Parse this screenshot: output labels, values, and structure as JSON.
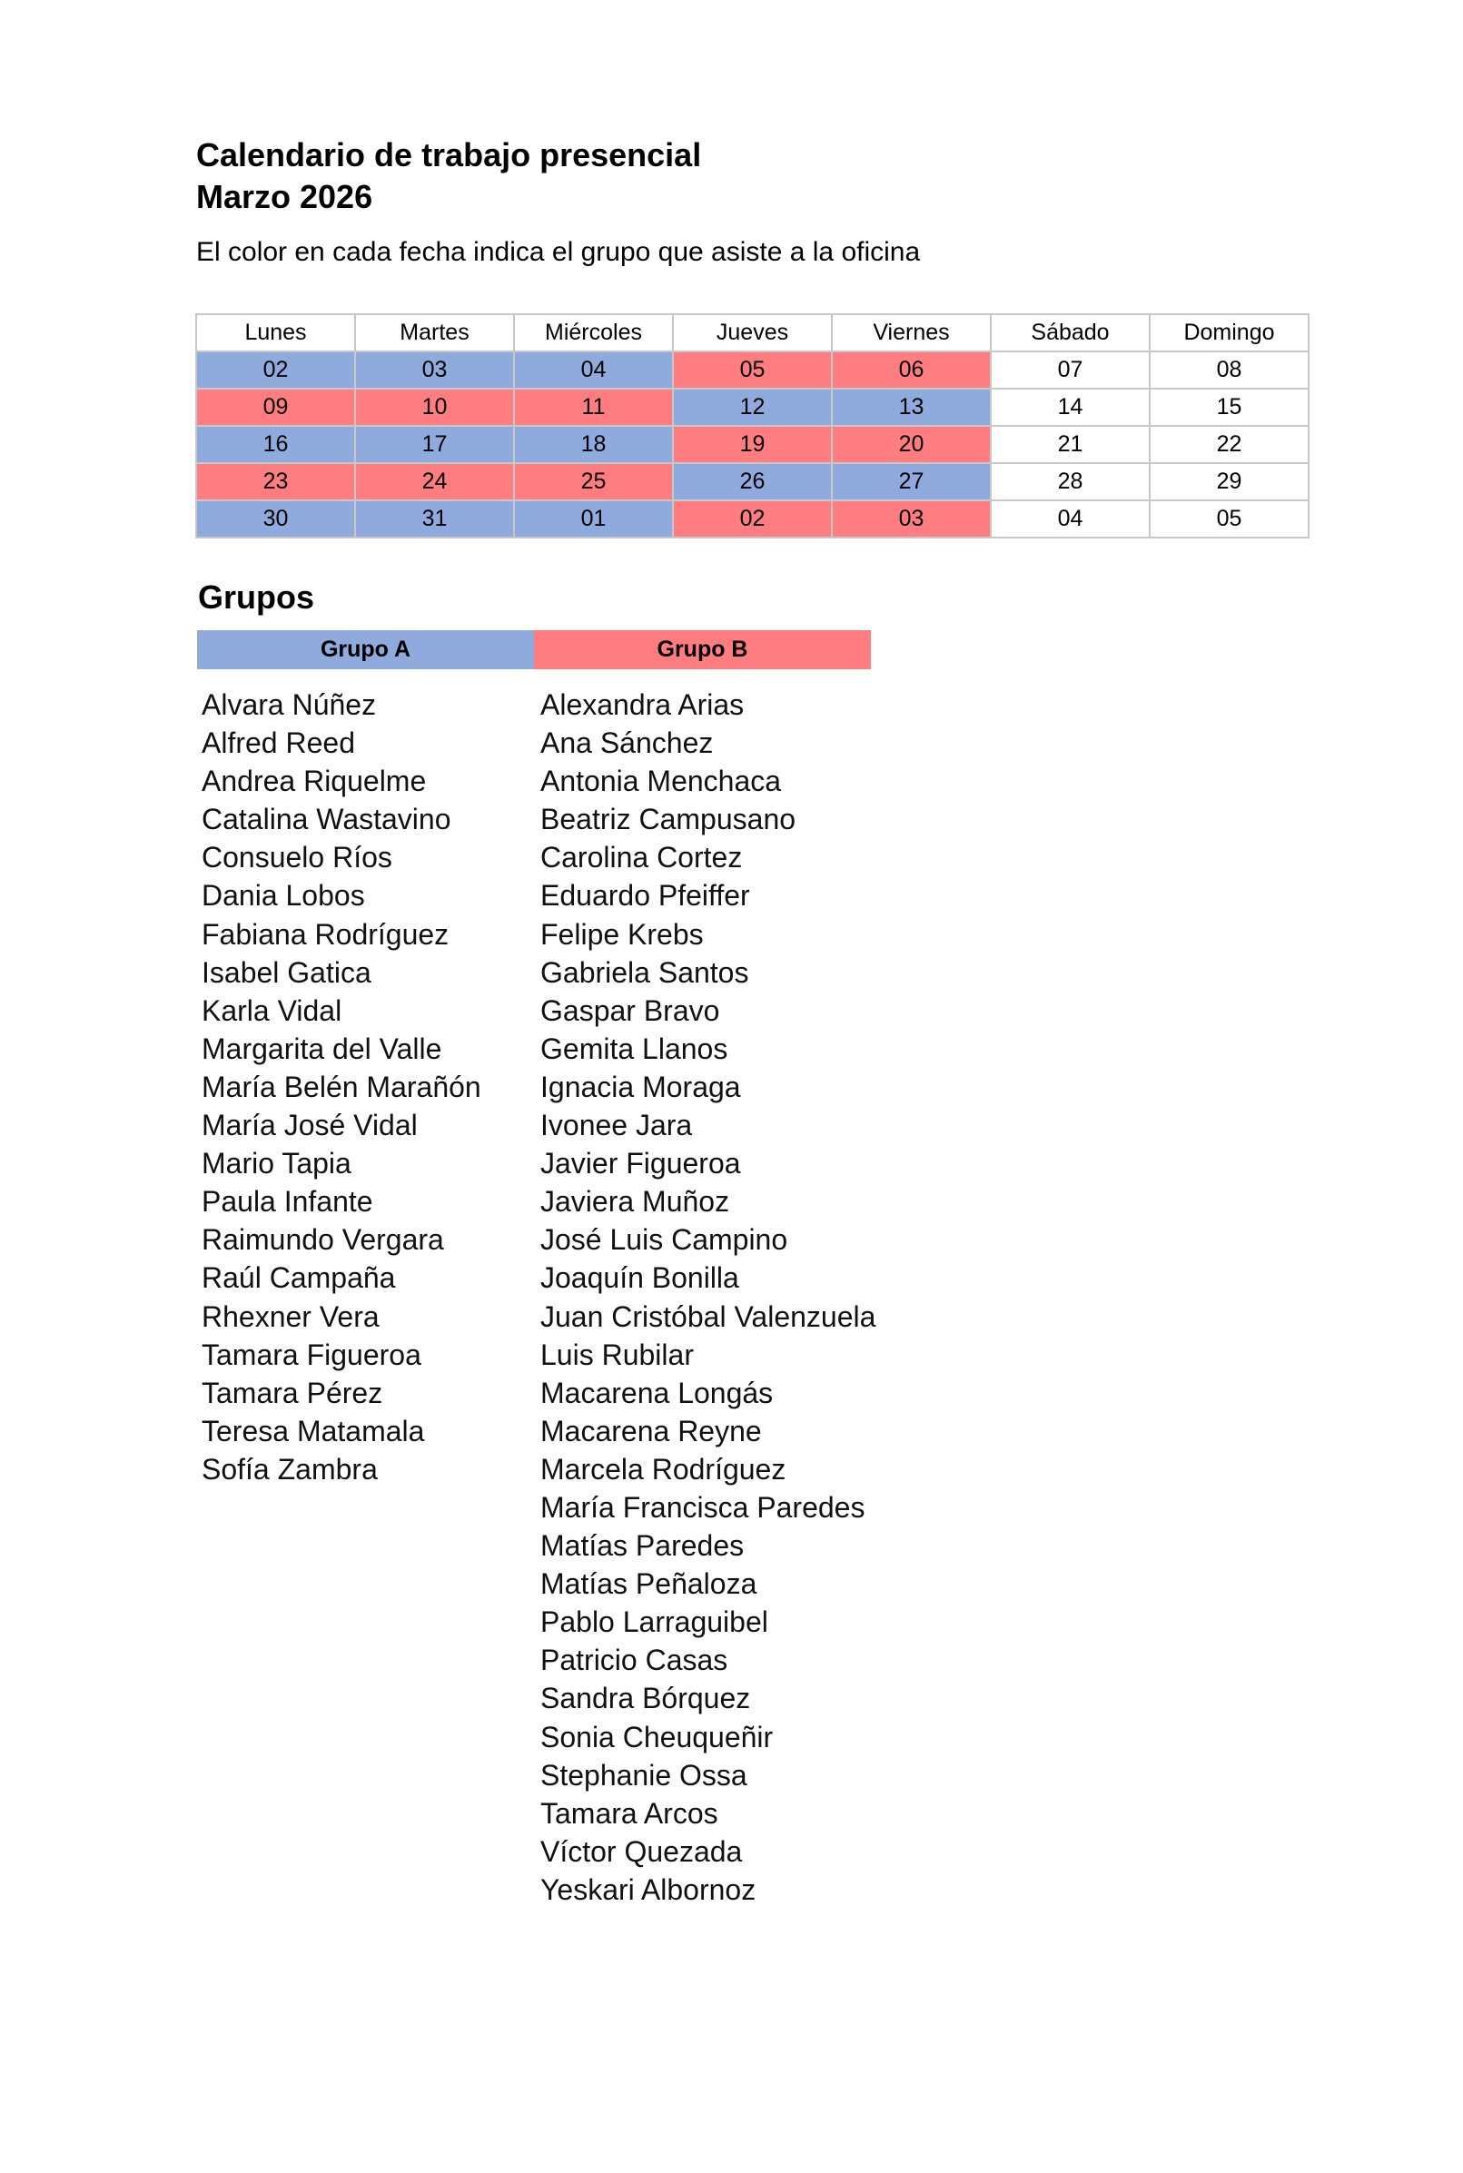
{
  "header": {
    "title": "Calendario de trabajo presencial",
    "subtitle": "Marzo 2026",
    "description": "El color en cada fecha indica el grupo que asiste  a la oficina"
  },
  "colors": {
    "grupo_a": "#8faadc",
    "grupo_b": "#ff7c80"
  },
  "calendar": {
    "days": [
      "Lunes",
      "Martes",
      "Miércoles",
      "Jueves",
      "Viernes",
      "Sábado",
      "Domingo"
    ],
    "weeks": [
      [
        {
          "d": "02",
          "g": "A"
        },
        {
          "d": "03",
          "g": "A"
        },
        {
          "d": "04",
          "g": "A"
        },
        {
          "d": "05",
          "g": "B"
        },
        {
          "d": "06",
          "g": "B"
        },
        {
          "d": "07",
          "g": ""
        },
        {
          "d": "08",
          "g": ""
        }
      ],
      [
        {
          "d": "09",
          "g": "B"
        },
        {
          "d": "10",
          "g": "B"
        },
        {
          "d": "11",
          "g": "B"
        },
        {
          "d": "12",
          "g": "A"
        },
        {
          "d": "13",
          "g": "A"
        },
        {
          "d": "14",
          "g": ""
        },
        {
          "d": "15",
          "g": ""
        }
      ],
      [
        {
          "d": "16",
          "g": "A"
        },
        {
          "d": "17",
          "g": "A"
        },
        {
          "d": "18",
          "g": "A"
        },
        {
          "d": "19",
          "g": "B"
        },
        {
          "d": "20",
          "g": "B"
        },
        {
          "d": "21",
          "g": ""
        },
        {
          "d": "22",
          "g": ""
        }
      ],
      [
        {
          "d": "23",
          "g": "B"
        },
        {
          "d": "24",
          "g": "B"
        },
        {
          "d": "25",
          "g": "B"
        },
        {
          "d": "26",
          "g": "A"
        },
        {
          "d": "27",
          "g": "A"
        },
        {
          "d": "28",
          "g": ""
        },
        {
          "d": "29",
          "g": ""
        }
      ],
      [
        {
          "d": "30",
          "g": "A"
        },
        {
          "d": "31",
          "g": "A"
        },
        {
          "d": "01",
          "g": "A"
        },
        {
          "d": "02",
          "g": "B"
        },
        {
          "d": "03",
          "g": "B"
        },
        {
          "d": "04",
          "g": ""
        },
        {
          "d": "05",
          "g": ""
        }
      ]
    ]
  },
  "groups": {
    "heading": "Grupos",
    "a": {
      "label": "Grupo A",
      "members": [
        "Alvara Núñez",
        "Alfred Reed",
        "Andrea Riquelme",
        "Catalina Wastavino",
        "Consuelo Ríos",
        "Dania Lobos",
        "Fabiana Rodríguez",
        "Isabel Gatica",
        "Karla Vidal",
        "Margarita del Valle",
        "María Belén Marañón",
        "María José Vidal",
        "Mario Tapia",
        "Paula Infante",
        "Raimundo Vergara",
        "Raúl Campaña",
        "Rhexner Vera",
        "Tamara Figueroa",
        "Tamara Pérez",
        "Teresa Matamala",
        "Sofía Zambra"
      ]
    },
    "b": {
      "label": "Grupo B",
      "members": [
        "Alexandra Arias",
        "Ana Sánchez",
        "Antonia Menchaca",
        "Beatriz Campusano",
        "Carolina Cortez",
        "Eduardo Pfeiffer",
        "Felipe Krebs",
        "Gabriela Santos",
        "Gaspar Bravo",
        "Gemita Llanos",
        "Ignacia Moraga",
        "Ivonee Jara",
        "Javier Figueroa",
        "Javiera Muñoz",
        "José Luis Campino",
        "Joaquín Bonilla",
        "Juan Cristóbal Valenzuela",
        "Luis Rubilar",
        "Macarena Longás",
        "Macarena Reyne",
        "Marcela Rodríguez",
        "María Francisca Paredes",
        "Matías Paredes",
        "Matías Peñaloza",
        "Pablo Larraguibel",
        "Patricio Casas",
        "Sandra Bórquez",
        "Sonia Cheuqueñir",
        "Stephanie Ossa",
        "Tamara Arcos",
        "Víctor Quezada",
        "Yeskari Albornoz"
      ]
    }
  }
}
